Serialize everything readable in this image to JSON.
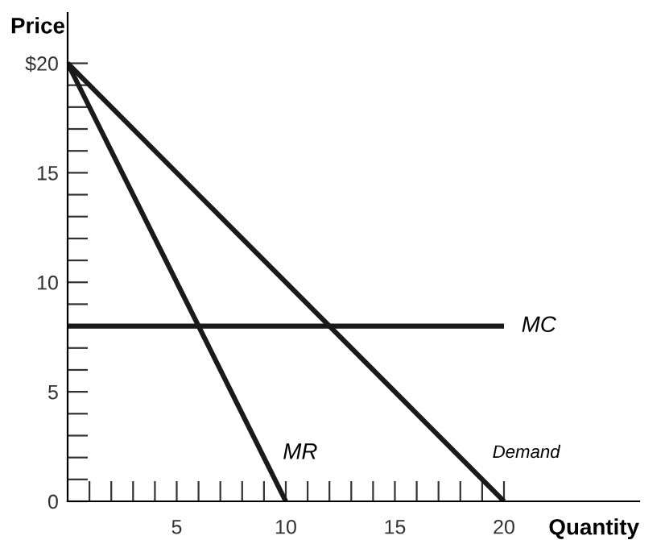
{
  "chart_data": {
    "type": "line",
    "xlabel": "Quantity",
    "ylabel": "Price",
    "series": [
      {
        "name": "MC",
        "color": "#1a1a1a",
        "x": [
          0,
          20
        ],
        "values": [
          8,
          8
        ]
      },
      {
        "name": "MR",
        "color": "#1a1a1a",
        "x": [
          0,
          10
        ],
        "values": [
          20,
          0
        ]
      },
      {
        "name": "Demand",
        "color": "#1a1a1a",
        "x": [
          0,
          20
        ],
        "values": [
          20,
          0
        ]
      }
    ],
    "xlim": [
      0,
      26.2
    ],
    "ylim": [
      0,
      22.3
    ],
    "xticks": [
      {
        "value": 1,
        "label": null
      },
      {
        "value": 2,
        "label": null
      },
      {
        "value": 3,
        "label": null
      },
      {
        "value": 4,
        "label": null
      },
      5,
      {
        "value": 6,
        "label": null
      },
      {
        "value": 7,
        "label": null
      },
      {
        "value": 8,
        "label": null
      },
      {
        "value": 9,
        "label": null
      },
      10,
      {
        "value": 11,
        "label": null
      },
      {
        "value": 12,
        "label": null
      },
      {
        "value": 13,
        "label": null
      },
      {
        "value": 14,
        "label": null
      },
      15,
      {
        "value": 16,
        "label": null
      },
      {
        "value": 17,
        "label": null
      },
      {
        "value": 18,
        "label": null
      },
      {
        "value": 19,
        "label": null
      },
      20
    ],
    "yticks": [
      0,
      {
        "value": 1,
        "label": null
      },
      {
        "value": 2,
        "label": null
      },
      {
        "value": 3,
        "label": null
      },
      {
        "value": 4,
        "label": null
      },
      5,
      {
        "value": 6,
        "label": null
      },
      {
        "value": 7,
        "label": null
      },
      {
        "value": 8,
        "label": null
      },
      {
        "value": 9,
        "label": null
      },
      10,
      {
        "value": 11,
        "label": null
      },
      {
        "value": 12,
        "label": null
      },
      {
        "value": 13,
        "label": null
      },
      {
        "value": 14,
        "label": null
      },
      15,
      {
        "value": 16,
        "label": null
      },
      {
        "value": 17,
        "label": null
      },
      {
        "value": 18,
        "label": null
      },
      {
        "value": 19,
        "label": null
      },
      {
        "value": 20,
        "label": "$20"
      }
    ],
    "grid": false,
    "legend": false,
    "marker": "none",
    "line_style": "solid"
  }
}
